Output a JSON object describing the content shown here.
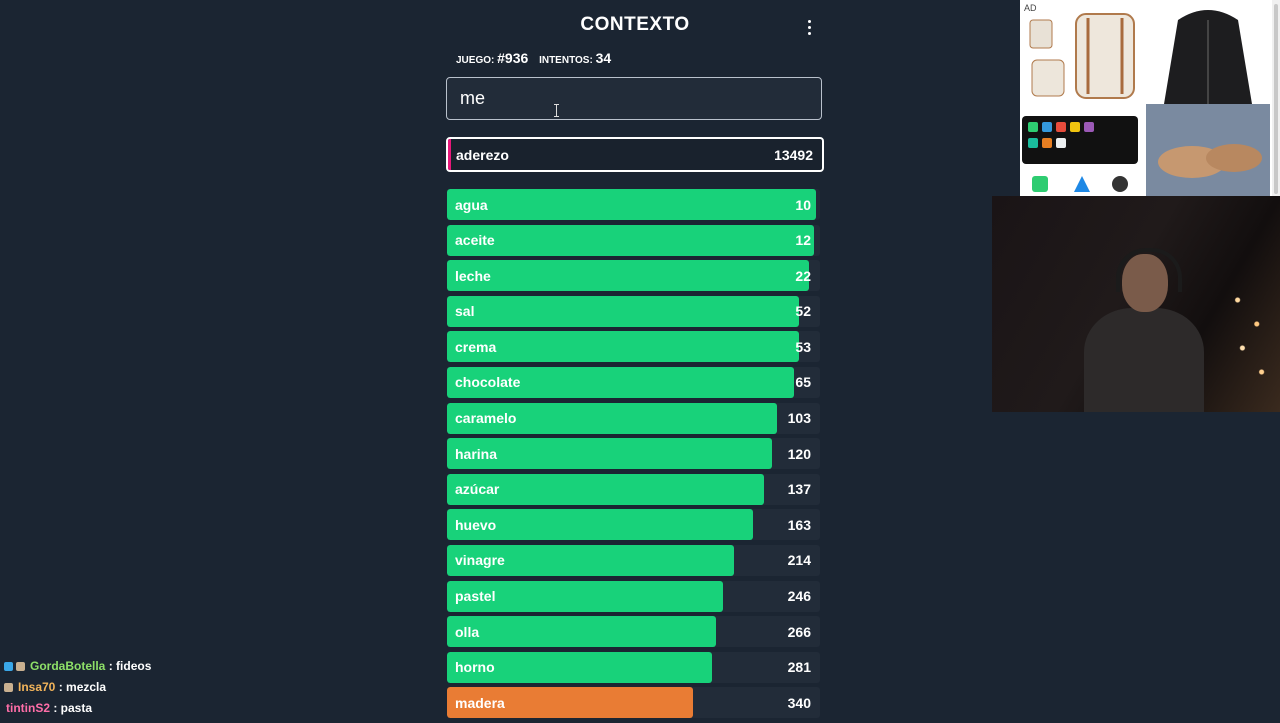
{
  "app": {
    "title": "CONTEXTO",
    "game_label": "JUEGO:",
    "game_value": "#936",
    "attempts_label": "INTENTOS:",
    "attempts_value": "34",
    "input_value": "me"
  },
  "last_guess": {
    "word": "aderezo",
    "rank": "13492",
    "accent_color": "#e8187a"
  },
  "guesses": [
    {
      "word": "agua",
      "rank": "10",
      "fill": 0.99,
      "color": "#18d27a"
    },
    {
      "word": "aceite",
      "rank": "12",
      "fill": 0.985,
      "color": "#18d27a"
    },
    {
      "word": "leche",
      "rank": "22",
      "fill": 0.97,
      "color": "#18d27a"
    },
    {
      "word": "sal",
      "rank": "52",
      "fill": 0.945,
      "color": "#18d27a"
    },
    {
      "word": "crema",
      "rank": "53",
      "fill": 0.943,
      "color": "#18d27a"
    },
    {
      "word": "chocolate",
      "rank": "65",
      "fill": 0.93,
      "color": "#18d27a"
    },
    {
      "word": "caramelo",
      "rank": "103",
      "fill": 0.885,
      "color": "#18d27a"
    },
    {
      "word": "harina",
      "rank": "120",
      "fill": 0.87,
      "color": "#18d27a"
    },
    {
      "word": "azúcar",
      "rank": "137",
      "fill": 0.85,
      "color": "#18d27a"
    },
    {
      "word": "huevo",
      "rank": "163",
      "fill": 0.82,
      "color": "#18d27a"
    },
    {
      "word": "vinagre",
      "rank": "214",
      "fill": 0.77,
      "color": "#18d27a"
    },
    {
      "word": "pastel",
      "rank": "246",
      "fill": 0.74,
      "color": "#18d27a"
    },
    {
      "word": "olla",
      "rank": "266",
      "fill": 0.72,
      "color": "#18d27a"
    },
    {
      "word": "horno",
      "rank": "281",
      "fill": 0.71,
      "color": "#18d27a"
    },
    {
      "word": "madera",
      "rank": "340",
      "fill": 0.66,
      "color": "#e97c34"
    }
  ],
  "ad": {
    "tag": "AD"
  },
  "chat": [
    {
      "user": "GordaBotella",
      "message": "fideos",
      "user_color": "#8ee068",
      "badges": [
        "#3aa7e8",
        "#c9b090"
      ]
    },
    {
      "user": "Insa70",
      "message": "mezcla",
      "user_color": "#f2b45a",
      "badges": [
        "#c9b090"
      ]
    },
    {
      "user": "tintinS2",
      "message": "pasta",
      "user_color": "#ff6ea8",
      "badges": []
    }
  ]
}
